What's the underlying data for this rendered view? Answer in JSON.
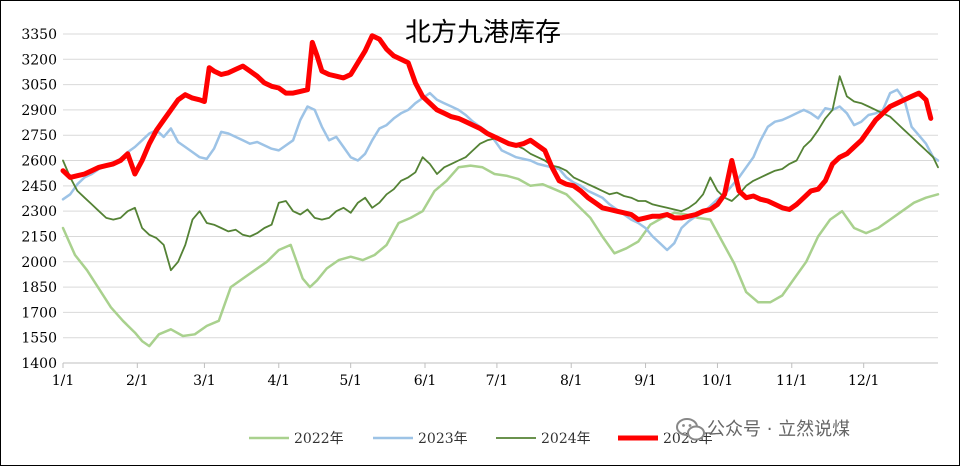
{
  "chart_data": {
    "type": "line",
    "title": "北方九港库存",
    "watermark": "公众号 · 立然说煤",
    "xlabel": "",
    "ylabel": "",
    "ylim": [
      1400,
      3350
    ],
    "yticks": [
      1400,
      1550,
      1700,
      1850,
      2000,
      2150,
      2300,
      2450,
      2600,
      2750,
      2900,
      3050,
      3200,
      3350
    ],
    "xlim": [
      0,
      365
    ],
    "xticks": [
      {
        "label": "1/1",
        "day": 0
      },
      {
        "label": "2/1",
        "day": 31
      },
      {
        "label": "3/1",
        "day": 59
      },
      {
        "label": "4/1",
        "day": 90
      },
      {
        "label": "5/1",
        "day": 120
      },
      {
        "label": "6/1",
        "day": 151
      },
      {
        "label": "7/1",
        "day": 181
      },
      {
        "label": "8/1",
        "day": 212
      },
      {
        "label": "9/1",
        "day": 243
      },
      {
        "label": "10/1",
        "day": 273
      },
      {
        "label": "11/1",
        "day": 304
      },
      {
        "label": "12/1",
        "day": 334
      }
    ],
    "grid": true,
    "legend_position": "bottom",
    "series": [
      {
        "name": "2022年",
        "color": "#a9d18e",
        "width": 2.5,
        "x": [
          0,
          5,
          10,
          15,
          20,
          25,
          30,
          33,
          36,
          40,
          45,
          50,
          55,
          60,
          65,
          70,
          75,
          80,
          85,
          90,
          95,
          100,
          103,
          106,
          110,
          115,
          120,
          125,
          130,
          135,
          140,
          145,
          150,
          155,
          160,
          165,
          170,
          175,
          180,
          185,
          190,
          195,
          200,
          205,
          210,
          215,
          220,
          225,
          230,
          235,
          240,
          245,
          250,
          255,
          260,
          265,
          270,
          275,
          280,
          285,
          290,
          295,
          300,
          305,
          310,
          315,
          320,
          325,
          330,
          335,
          340,
          345,
          350,
          355,
          360,
          365
        ],
        "y": [
          2200,
          2040,
          1950,
          1840,
          1730,
          1650,
          1580,
          1530,
          1500,
          1570,
          1600,
          1560,
          1570,
          1620,
          1650,
          1850,
          1900,
          1950,
          2000,
          2070,
          2100,
          1900,
          1850,
          1890,
          1960,
          2010,
          2030,
          2010,
          2040,
          2100,
          2230,
          2260,
          2300,
          2420,
          2480,
          2560,
          2570,
          2560,
          2520,
          2510,
          2490,
          2450,
          2460,
          2430,
          2400,
          2330,
          2260,
          2150,
          2050,
          2080,
          2120,
          2220,
          2260,
          2290,
          2280,
          2260,
          2250,
          2120,
          1990,
          1820,
          1760,
          1760,
          1800,
          1900,
          2000,
          2150,
          2250,
          2300,
          2200,
          2170,
          2200,
          2250,
          2300,
          2350,
          2380,
          2400
        ]
      },
      {
        "name": "2023年",
        "color": "#9dc3e6",
        "width": 2.5,
        "x": [
          0,
          3,
          6,
          9,
          12,
          15,
          18,
          21,
          24,
          27,
          30,
          33,
          36,
          39,
          42,
          45,
          48,
          51,
          54,
          57,
          60,
          63,
          66,
          69,
          72,
          75,
          78,
          81,
          84,
          87,
          90,
          93,
          96,
          99,
          102,
          105,
          108,
          111,
          114,
          117,
          120,
          123,
          126,
          129,
          132,
          135,
          138,
          141,
          144,
          147,
          150,
          153,
          156,
          159,
          162,
          165,
          168,
          171,
          174,
          177,
          180,
          183,
          186,
          189,
          192,
          195,
          198,
          201,
          204,
          207,
          210,
          213,
          216,
          219,
          222,
          225,
          228,
          231,
          234,
          237,
          240,
          243,
          246,
          249,
          252,
          255,
          258,
          261,
          264,
          267,
          270,
          273,
          276,
          279,
          282,
          285,
          288,
          291,
          294,
          297,
          300,
          303,
          306,
          309,
          312,
          315,
          318,
          321,
          324,
          327,
          330,
          333,
          336,
          339,
          342,
          345,
          348,
          351,
          354,
          357,
          360,
          363,
          365
        ],
        "y": [
          2370,
          2400,
          2460,
          2500,
          2520,
          2550,
          2570,
          2590,
          2610,
          2650,
          2680,
          2720,
          2760,
          2780,
          2740,
          2790,
          2710,
          2680,
          2650,
          2620,
          2610,
          2670,
          2770,
          2760,
          2740,
          2720,
          2700,
          2710,
          2690,
          2670,
          2660,
          2690,
          2720,
          2840,
          2920,
          2900,
          2800,
          2720,
          2740,
          2680,
          2620,
          2600,
          2640,
          2720,
          2790,
          2810,
          2850,
          2880,
          2900,
          2940,
          2970,
          3000,
          2960,
          2940,
          2920,
          2900,
          2870,
          2830,
          2800,
          2770,
          2720,
          2660,
          2640,
          2620,
          2610,
          2600,
          2580,
          2570,
          2560,
          2550,
          2500,
          2470,
          2450,
          2420,
          2400,
          2380,
          2340,
          2310,
          2280,
          2250,
          2230,
          2200,
          2150,
          2110,
          2070,
          2110,
          2200,
          2240,
          2270,
          2290,
          2330,
          2370,
          2400,
          2450,
          2500,
          2560,
          2620,
          2720,
          2800,
          2830,
          2840,
          2860,
          2880,
          2900,
          2880,
          2850,
          2910,
          2900,
          2920,
          2880,
          2810,
          2830,
          2870,
          2880,
          2900,
          3000,
          3020,
          2960,
          2800,
          2750,
          2700,
          2620,
          2600
        ]
      },
      {
        "name": "2024年",
        "color": "#548235",
        "width": 1.8,
        "x": [
          0,
          3,
          6,
          9,
          12,
          15,
          18,
          21,
          24,
          27,
          30,
          33,
          36,
          39,
          42,
          45,
          48,
          51,
          54,
          57,
          60,
          63,
          66,
          69,
          72,
          75,
          78,
          81,
          84,
          87,
          90,
          93,
          96,
          99,
          102,
          105,
          108,
          111,
          114,
          117,
          120,
          123,
          126,
          129,
          132,
          135,
          138,
          141,
          144,
          147,
          150,
          153,
          156,
          159,
          162,
          165,
          168,
          171,
          174,
          177,
          180,
          183,
          186,
          189,
          192,
          195,
          198,
          201,
          204,
          207,
          210,
          213,
          216,
          219,
          222,
          225,
          228,
          231,
          234,
          237,
          240,
          243,
          246,
          249,
          252,
          255,
          258,
          261,
          264,
          267,
          270,
          273,
          276,
          279,
          282,
          285,
          288,
          291,
          294,
          297,
          300,
          303,
          306,
          309,
          312,
          315,
          318,
          321,
          324,
          327,
          330,
          333,
          336,
          339,
          342,
          345,
          348,
          351,
          354,
          357,
          360,
          363,
          365
        ],
        "y": [
          2600,
          2500,
          2420,
          2380,
          2340,
          2300,
          2260,
          2250,
          2260,
          2300,
          2320,
          2200,
          2160,
          2140,
          2100,
          1950,
          2000,
          2100,
          2250,
          2300,
          2230,
          2220,
          2200,
          2180,
          2190,
          2160,
          2150,
          2170,
          2200,
          2220,
          2350,
          2360,
          2300,
          2280,
          2310,
          2260,
          2250,
          2260,
          2300,
          2320,
          2290,
          2350,
          2380,
          2320,
          2350,
          2400,
          2430,
          2480,
          2500,
          2530,
          2620,
          2580,
          2520,
          2560,
          2580,
          2600,
          2620,
          2660,
          2700,
          2720,
          2730,
          2720,
          2700,
          2690,
          2670,
          2640,
          2620,
          2600,
          2570,
          2560,
          2540,
          2500,
          2480,
          2460,
          2440,
          2420,
          2400,
          2410,
          2390,
          2380,
          2360,
          2360,
          2340,
          2330,
          2320,
          2310,
          2300,
          2320,
          2350,
          2400,
          2500,
          2420,
          2380,
          2360,
          2400,
          2450,
          2480,
          2500,
          2520,
          2540,
          2550,
          2580,
          2600,
          2680,
          2720,
          2780,
          2850,
          2900,
          3100,
          2980,
          2950,
          2940,
          2920,
          2900,
          2880,
          2860,
          2820,
          2780,
          2740,
          2700,
          2660,
          2620,
          2560
        ]
      },
      {
        "name": "2025年",
        "color": "#ff0000",
        "width": 5,
        "x": [
          0,
          3,
          6,
          9,
          12,
          15,
          18,
          21,
          24,
          27,
          30,
          33,
          36,
          39,
          42,
          45,
          48,
          51,
          54,
          57,
          59,
          61,
          63,
          66,
          69,
          72,
          75,
          78,
          81,
          84,
          87,
          90,
          93,
          96,
          99,
          102,
          104,
          106,
          108,
          111,
          114,
          117,
          120,
          123,
          126,
          129,
          132,
          135,
          138,
          141,
          144,
          147,
          150,
          153,
          156,
          159,
          162,
          165,
          168,
          171,
          174,
          177,
          180,
          183,
          186,
          189,
          192,
          195,
          198,
          201,
          204,
          207,
          210,
          213,
          216,
          219,
          222,
          225,
          228,
          231,
          234,
          237,
          240,
          243,
          246,
          249,
          252,
          255,
          258,
          261,
          264,
          267,
          270,
          273,
          276,
          279,
          282,
          285,
          288,
          291,
          294,
          297,
          300,
          303,
          306,
          309,
          312,
          315,
          318,
          321,
          324,
          327,
          330,
          333,
          336,
          339,
          342,
          345,
          348,
          351,
          354,
          357,
          360,
          362
        ],
        "y": [
          2540,
          2500,
          2510,
          2520,
          2540,
          2560,
          2570,
          2580,
          2600,
          2640,
          2520,
          2600,
          2700,
          2780,
          2840,
          2900,
          2960,
          2990,
          2970,
          2960,
          2950,
          3150,
          3130,
          3110,
          3120,
          3140,
          3160,
          3130,
          3100,
          3060,
          3040,
          3030,
          3000,
          3000,
          3010,
          3020,
          3300,
          3220,
          3130,
          3110,
          3100,
          3090,
          3110,
          3180,
          3250,
          3340,
          3320,
          3260,
          3220,
          3200,
          3180,
          3060,
          2980,
          2940,
          2900,
          2880,
          2860,
          2850,
          2830,
          2810,
          2790,
          2760,
          2740,
          2720,
          2700,
          2690,
          2700,
          2720,
          2690,
          2660,
          2560,
          2480,
          2460,
          2450,
          2420,
          2380,
          2350,
          2320,
          2310,
          2300,
          2290,
          2280,
          2250,
          2260,
          2270,
          2270,
          2280,
          2260,
          2260,
          2270,
          2280,
          2300,
          2310,
          2340,
          2400,
          2600,
          2420,
          2380,
          2390,
          2370,
          2360,
          2340,
          2320,
          2310,
          2340,
          2380,
          2420,
          2430,
          2480,
          2580,
          2620,
          2640,
          2680,
          2720,
          2780,
          2840,
          2880,
          2920,
          2940,
          2960,
          2980,
          3000,
          2960,
          2850
        ]
      }
    ]
  }
}
